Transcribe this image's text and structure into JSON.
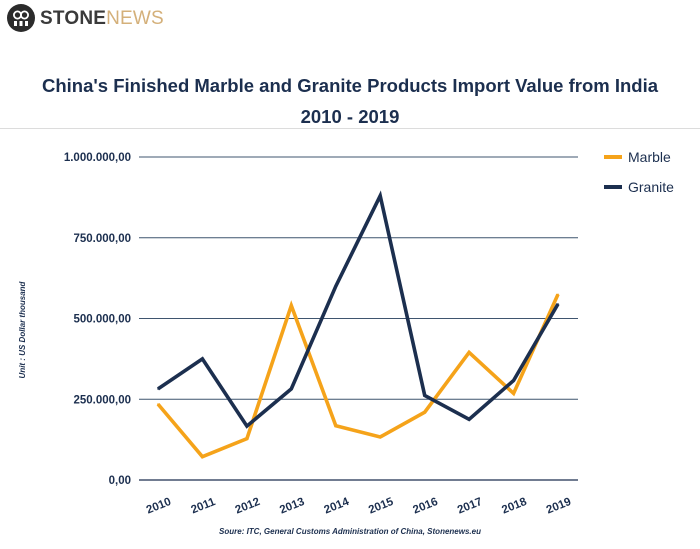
{
  "header": {
    "brand_part1": "STONE",
    "brand_part2": "NEWS",
    "logo_icon": "stonenews-logo-icon"
  },
  "chart_data": {
    "type": "line",
    "title": "China's Finished Marble and Granite Products Import Value from India",
    "subtitle": "2010 - 2019",
    "xlabel": "",
    "ylabel": "Unit : US Dollar thousand",
    "source": "Soure: ITC, General Customs Administration of China, Stonenews.eu",
    "categories": [
      "2010",
      "2011",
      "2012",
      "2013",
      "2014",
      "2015",
      "2016",
      "2017",
      "2018",
      "2019"
    ],
    "series": [
      {
        "name": "Marble",
        "color": "#f5a31a",
        "values": [
          235000,
          72000,
          128000,
          540000,
          168000,
          133000,
          210000,
          395000,
          268000,
          575000
        ]
      },
      {
        "name": "Granite",
        "color": "#1c2f4f",
        "values": [
          282000,
          375000,
          167000,
          282000,
          600000,
          880000,
          262000,
          188000,
          308000,
          545000
        ]
      }
    ],
    "ylim": [
      0,
      1000000
    ],
    "yticks": [
      {
        "value": 0,
        "label": "0,00"
      },
      {
        "value": 250000,
        "label": "250.000,00"
      },
      {
        "value": 500000,
        "label": "500.000,00"
      },
      {
        "value": 750000,
        "label": "750.000,00"
      },
      {
        "value": 1000000,
        "label": "1.000.000,00"
      }
    ],
    "grid": true,
    "legend_position": "top-right"
  }
}
